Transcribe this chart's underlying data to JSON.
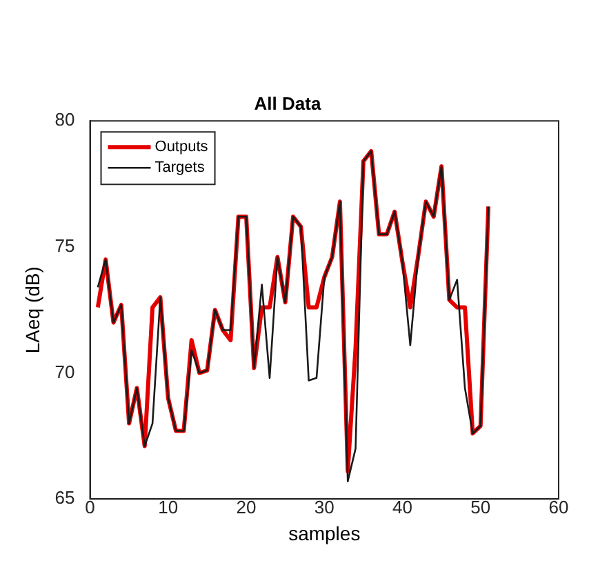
{
  "chart_data": {
    "type": "line",
    "title": "All Data",
    "xlabel": "samples",
    "ylabel": "LAeq (dB)",
    "x": [
      1,
      2,
      3,
      4,
      5,
      6,
      7,
      8,
      9,
      10,
      11,
      12,
      13,
      14,
      15,
      16,
      17,
      18,
      19,
      20,
      21,
      22,
      23,
      24,
      25,
      26,
      27,
      28,
      29,
      30,
      31,
      32,
      33,
      34,
      35,
      36,
      37,
      38,
      39,
      40,
      41,
      42,
      43,
      44,
      45,
      46,
      47,
      48,
      49,
      50,
      51
    ],
    "series": [
      {
        "name": "Outputs",
        "color": "#e50000",
        "values": [
          72.6,
          74.5,
          72.0,
          72.7,
          68.0,
          69.4,
          67.1,
          72.6,
          73.0,
          69.0,
          67.7,
          67.7,
          71.3,
          70.0,
          70.1,
          72.5,
          71.7,
          71.3,
          76.2,
          76.2,
          70.2,
          72.6,
          72.6,
          74.6,
          72.8,
          76.2,
          75.8,
          72.6,
          72.6,
          73.8,
          74.6,
          76.8,
          66.1,
          71.0,
          78.4,
          78.8,
          75.5,
          75.5,
          76.4,
          74.4,
          72.6,
          74.6,
          76.8,
          76.2,
          78.2,
          72.9,
          72.6,
          72.6,
          67.6,
          67.9,
          76.6
        ]
      },
      {
        "name": "Targets",
        "color": "#1a1a1a",
        "values": [
          73.4,
          74.5,
          72.0,
          72.7,
          68.0,
          69.4,
          67.1,
          68.0,
          73.0,
          69.0,
          67.7,
          67.7,
          70.9,
          70.0,
          70.1,
          72.5,
          71.7,
          71.7,
          76.2,
          76.2,
          70.2,
          73.5,
          69.8,
          74.6,
          72.8,
          76.2,
          75.8,
          69.7,
          69.8,
          73.8,
          74.6,
          76.8,
          65.7,
          67.0,
          78.4,
          78.8,
          75.5,
          75.5,
          76.4,
          74.4,
          71.1,
          74.6,
          76.8,
          76.2,
          78.2,
          72.9,
          73.7,
          69.4,
          67.6,
          67.9,
          76.6
        ]
      }
    ],
    "xlim": [
      0,
      60
    ],
    "xticks": [
      0,
      10,
      20,
      30,
      40,
      50,
      60
    ],
    "ylim": [
      65,
      80
    ],
    "yticks": [
      65,
      70,
      75,
      80
    ],
    "legend": "top left"
  }
}
